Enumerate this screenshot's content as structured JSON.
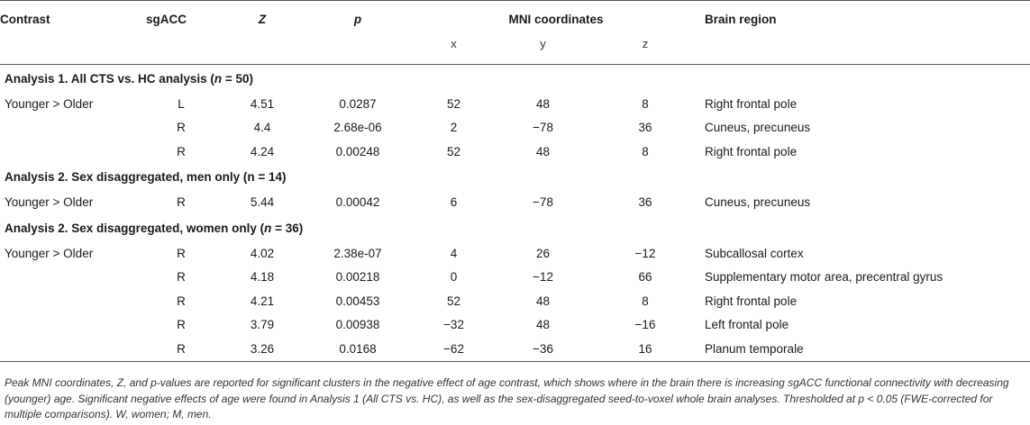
{
  "header": {
    "contrast": "Contrast",
    "sgacc": "sgACC",
    "z": "Z",
    "p": "p",
    "mni": "MNI coordinates",
    "region": "Brain region",
    "x": "x",
    "y": "y",
    "zc": "z"
  },
  "sections": [
    {
      "title_prefix": "Analysis 1. All CTS vs. HC analysis (",
      "title_n": "n",
      "title_suffix": " = 50)",
      "rows": [
        {
          "contrast": "Younger > Older",
          "sgacc": "L",
          "z": "4.51",
          "p": "0.0287",
          "x": "52",
          "y": "48",
          "zc": "8",
          "region": "Right frontal pole"
        },
        {
          "contrast": "",
          "sgacc": "R",
          "z": "4.4",
          "p": "2.68e-06",
          "x": "2",
          "y": "−78",
          "zc": "36",
          "region": "Cuneus, precuneus"
        },
        {
          "contrast": "",
          "sgacc": "R",
          "z": "4.24",
          "p": "0.00248",
          "x": "52",
          "y": "48",
          "zc": "8",
          "region": "Right frontal pole"
        }
      ]
    },
    {
      "title_prefix": "Analysis 2. Sex disaggregated, men only (n = 14)",
      "title_n": "",
      "title_suffix": "",
      "rows": [
        {
          "contrast": "Younger > Older",
          "sgacc": "R",
          "z": "5.44",
          "p": "0.00042",
          "x": "6",
          "y": "−78",
          "zc": "36",
          "region": "Cuneus, precuneus"
        }
      ]
    },
    {
      "title_prefix": "Analysis 2. Sex disaggregated, women only (",
      "title_n": "n",
      "title_suffix": " = 36)",
      "rows": [
        {
          "contrast": "Younger > Older",
          "sgacc": "R",
          "z": "4.02",
          "p": "2.38e-07",
          "x": "4",
          "y": "26",
          "zc": "−12",
          "region": "Subcallosal cortex"
        },
        {
          "contrast": "",
          "sgacc": "R",
          "z": "4.18",
          "p": "0.00218",
          "x": "0",
          "y": "−12",
          "zc": "66",
          "region": "Supplementary motor area, precentral gyrus"
        },
        {
          "contrast": "",
          "sgacc": "R",
          "z": "4.21",
          "p": "0.00453",
          "x": "52",
          "y": "48",
          "zc": "8",
          "region": "Right frontal pole"
        },
        {
          "contrast": "",
          "sgacc": "R",
          "z": "3.79",
          "p": "0.00938",
          "x": "−32",
          "y": "48",
          "zc": "−16",
          "region": "Left frontal pole"
        },
        {
          "contrast": "",
          "sgacc": "R",
          "z": "3.26",
          "p": "0.0168",
          "x": "−62",
          "y": "−36",
          "zc": "16",
          "region": "Planum temporale"
        }
      ]
    }
  ],
  "footnote": "Peak MNI coordinates, Z, and p-values are reported for significant clusters in the negative effect of age contrast, which shows where in the brain there is increasing sgACC functional connectivity with decreasing (younger) age. Significant negative effects of age were found in Analysis 1 (All CTS vs. HC), as well as the sex-disaggregated seed-to-voxel whole brain analyses. Thresholded at p < 0.05 (FWE-corrected for multiple comparisons). W, women; M, men."
}
